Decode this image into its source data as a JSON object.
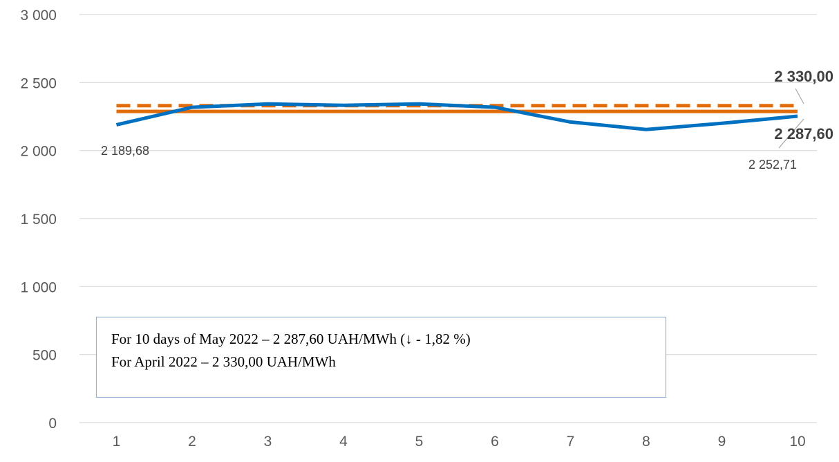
{
  "chart_data": {
    "type": "line",
    "x": [
      1,
      2,
      3,
      4,
      5,
      6,
      7,
      8,
      9,
      10
    ],
    "xticks": [
      "1",
      "2",
      "3",
      "4",
      "5",
      "6",
      "7",
      "8",
      "9",
      "10"
    ],
    "ylim": [
      0,
      3000
    ],
    "yticks": [
      0,
      500,
      1000,
      1500,
      2000,
      2500,
      3000
    ],
    "ytick_labels": [
      "0",
      "500",
      "1 000",
      "1 500",
      "2 000",
      "2 500",
      "3 000"
    ],
    "grid": "horizontal",
    "series": [
      {
        "style": "solid",
        "color": "#0070C0",
        "values": [
          2189.68,
          2318,
          2343,
          2333,
          2343,
          2318,
          2210,
          2155,
          2200,
          2252.71
        ]
      },
      {
        "style": "dashed",
        "color": "#E36C0A",
        "values": [
          2330.0,
          2330.0,
          2330.0,
          2330.0,
          2330.0,
          2330.0,
          2330.0,
          2330.0,
          2330.0,
          2330.0
        ]
      },
      {
        "style": "solid",
        "color": "#E36C0A",
        "values": [
          2287.6,
          2287.6,
          2287.6,
          2287.6,
          2287.6,
          2287.6,
          2287.6,
          2287.6,
          2287.6,
          2287.6
        ]
      }
    ],
    "data_labels": {
      "start": "2 189,68",
      "end": "2 252,71",
      "april": "2 330,00",
      "may": "2 287,60"
    },
    "note": {
      "line1": "For 10 days of May 2022 – 2 287,60 UAH/MWh  (↓ - 1,82 %)",
      "line2": "For April 2022 – 2 330,00 UAH/MWh"
    },
    "colors": {
      "grid": "#D9D9D9",
      "axis_text": "#595959",
      "note_border": "#95B3D7"
    }
  }
}
